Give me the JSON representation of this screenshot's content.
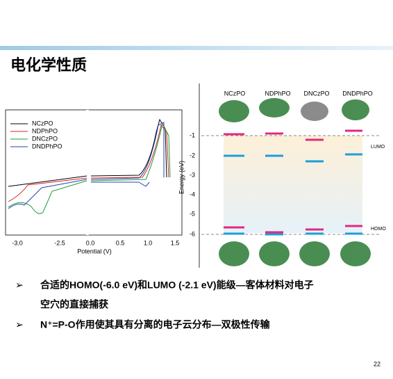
{
  "header": {
    "title": "电化学性质"
  },
  "cv_figure": {
    "x_tick_labels": [
      "-3.0",
      "-2.5",
      "0.0",
      "0.5",
      "1.0",
      "1.5"
    ],
    "x_axis_label": "Potential (V)",
    "legend": [
      "NCzPO",
      "NDPhPO",
      "DNCzPO",
      "DNDPhPO"
    ]
  },
  "energy_figure": {
    "columns": [
      "NCzPO",
      "NDPhPO",
      "DNCzPO",
      "DNDPhPO"
    ],
    "y_tick_labels": [
      "-1",
      "-2",
      "-3",
      "-4",
      "-5",
      "-6"
    ],
    "y_axis_label": "Energy (eV)",
    "lumo_label": "LUMO",
    "homo_label": "HOMO"
  },
  "bullets": [
    [
      "合适的HOMO(-6.0 eV)和LUMO (-2.1 eV)能级—客体材料对电子",
      "空穴的直接捕获"
    ],
    [
      "N⁺=P-O作用使其具有分离的电子云分布—双极性传输"
    ]
  ],
  "footer": {
    "page_number": "22"
  }
}
